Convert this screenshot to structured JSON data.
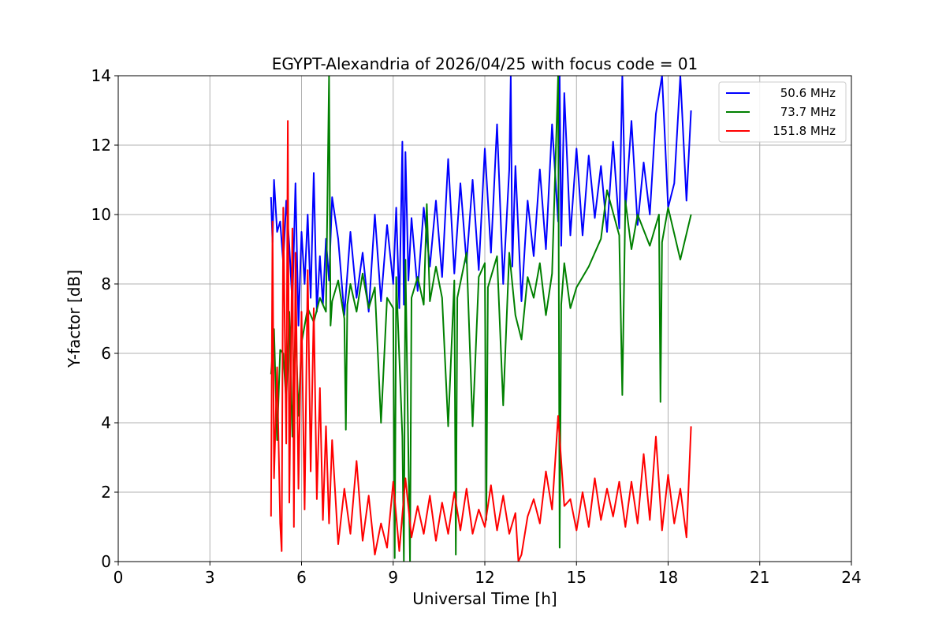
{
  "chart_data": {
    "type": "line",
    "title": "EGYPT-Alexandria of 2026/04/25 with focus code = 01",
    "xlabel": "Universal Time [h]",
    "ylabel": "Y-factor [dB]",
    "xlim": [
      0,
      24
    ],
    "ylim": [
      0,
      14
    ],
    "xticks": [
      0,
      3,
      6,
      9,
      12,
      15,
      18,
      21,
      24
    ],
    "yticks": [
      0,
      2,
      4,
      6,
      8,
      10,
      12,
      14
    ],
    "grid": true,
    "legend_position": "top-right",
    "series": [
      {
        "name": "50.6 MHz",
        "color": "#0000ff",
        "x": [
          5.0,
          5.05,
          5.1,
          5.2,
          5.3,
          5.4,
          5.5,
          5.6,
          5.7,
          5.8,
          5.9,
          6.0,
          6.1,
          6.2,
          6.3,
          6.4,
          6.5,
          6.6,
          6.7,
          6.8,
          6.9,
          7.0,
          7.2,
          7.4,
          7.6,
          7.8,
          8.0,
          8.2,
          8.4,
          8.6,
          8.8,
          9.0,
          9.1,
          9.2,
          9.3,
          9.35,
          9.4,
          9.5,
          9.6,
          9.8,
          10.0,
          10.2,
          10.4,
          10.6,
          10.8,
          11.0,
          11.2,
          11.4,
          11.6,
          11.8,
          12.0,
          12.2,
          12.4,
          12.6,
          12.8,
          12.85,
          12.9,
          13.0,
          13.2,
          13.4,
          13.6,
          13.8,
          14.0,
          14.2,
          14.4,
          14.45,
          14.5,
          14.6,
          14.8,
          15.0,
          15.2,
          15.4,
          15.6,
          15.8,
          16.0,
          16.2,
          16.4,
          16.5,
          16.6,
          16.8,
          17.0,
          17.2,
          17.4,
          17.6,
          17.8,
          18.0,
          18.2,
          18.4,
          18.6,
          18.75
        ],
        "y": [
          10.5,
          9.2,
          11.0,
          9.5,
          9.8,
          8.6,
          10.4,
          9.1,
          7.4,
          10.9,
          6.8,
          9.5,
          8.0,
          10.0,
          7.6,
          11.2,
          7.2,
          8.8,
          7.4,
          9.3,
          8.1,
          10.5,
          9.3,
          7.1,
          9.5,
          7.6,
          8.9,
          7.2,
          10.0,
          7.5,
          9.7,
          8.0,
          10.2,
          7.3,
          12.1,
          7.4,
          11.8,
          8.1,
          9.9,
          7.8,
          10.2,
          8.5,
          10.4,
          8.2,
          11.6,
          8.3,
          10.9,
          8.6,
          11.0,
          8.4,
          11.9,
          8.9,
          12.6,
          8.0,
          11.3,
          14.0,
          8.5,
          11.4,
          7.5,
          10.4,
          8.8,
          11.3,
          9.0,
          12.6,
          9.8,
          14.0,
          9.1,
          13.5,
          9.4,
          11.9,
          9.4,
          11.7,
          9.9,
          11.4,
          9.5,
          12.1,
          9.6,
          14.0,
          10.1,
          12.7,
          9.7,
          11.5,
          10.0,
          12.9,
          14.0,
          10.2,
          10.9,
          14.0,
          10.4,
          13.0
        ]
      },
      {
        "name": "73.7 MHz",
        "color": "#008000",
        "x": [
          5.0,
          5.05,
          5.1,
          5.2,
          5.3,
          5.4,
          5.5,
          5.6,
          5.7,
          5.8,
          5.9,
          6.0,
          6.2,
          6.4,
          6.6,
          6.8,
          6.9,
          6.95,
          7.0,
          7.2,
          7.4,
          7.45,
          7.5,
          7.6,
          7.8,
          8.0,
          8.2,
          8.4,
          8.6,
          8.8,
          9.0,
          9.05,
          9.1,
          9.3,
          9.35,
          9.4,
          9.55,
          9.6,
          9.8,
          10.0,
          10.1,
          10.2,
          10.4,
          10.6,
          10.8,
          11.0,
          11.05,
          11.1,
          11.4,
          11.6,
          11.8,
          12.0,
          12.05,
          12.1,
          12.4,
          12.6,
          12.8,
          13.0,
          13.2,
          13.4,
          13.6,
          13.8,
          14.0,
          14.2,
          14.4,
          14.45,
          14.5,
          14.6,
          14.8,
          15.0,
          15.4,
          15.8,
          16.0,
          16.4,
          16.5,
          16.6,
          16.8,
          17.0,
          17.4,
          17.7,
          17.75,
          17.8,
          18.0,
          18.4,
          18.75
        ],
        "y": [
          5.4,
          6.0,
          6.7,
          3.5,
          6.1,
          6.0,
          4.6,
          7.2,
          3.6,
          6.9,
          4.2,
          6.3,
          7.3,
          6.9,
          7.6,
          7.2,
          14.0,
          6.8,
          7.5,
          8.1,
          7.0,
          3.8,
          7.4,
          8.0,
          7.2,
          8.3,
          7.3,
          7.9,
          4.0,
          7.6,
          7.3,
          0.1,
          8.2,
          3.6,
          0.0,
          8.7,
          0.0,
          7.6,
          8.2,
          7.4,
          10.3,
          7.5,
          8.5,
          7.6,
          3.9,
          8.1,
          0.2,
          7.6,
          8.9,
          3.9,
          8.2,
          8.6,
          1.2,
          7.9,
          8.8,
          4.5,
          8.9,
          7.1,
          6.4,
          8.2,
          7.6,
          8.6,
          7.1,
          8.3,
          14.0,
          0.4,
          7.4,
          8.6,
          7.3,
          7.9,
          8.5,
          9.3,
          10.7,
          9.4,
          4.8,
          10.4,
          9.0,
          10.0,
          9.1,
          10.0,
          4.6,
          9.2,
          10.2,
          8.7,
          10.0
        ]
      },
      {
        "name": "151.8 MHz",
        "color": "#ff0000",
        "x": [
          5.0,
          5.05,
          5.1,
          5.2,
          5.3,
          5.35,
          5.4,
          5.5,
          5.55,
          5.6,
          5.7,
          5.75,
          5.8,
          5.9,
          6.0,
          6.1,
          6.2,
          6.3,
          6.4,
          6.5,
          6.6,
          6.7,
          6.8,
          6.9,
          7.0,
          7.2,
          7.4,
          7.6,
          7.8,
          8.0,
          8.2,
          8.4,
          8.6,
          8.8,
          9.0,
          9.2,
          9.4,
          9.6,
          9.8,
          10.0,
          10.2,
          10.4,
          10.6,
          10.8,
          11.0,
          11.2,
          11.4,
          11.6,
          11.8,
          12.0,
          12.2,
          12.4,
          12.6,
          12.8,
          13.0,
          13.1,
          13.2,
          13.4,
          13.6,
          13.8,
          14.0,
          14.2,
          14.4,
          14.6,
          14.8,
          15.0,
          15.2,
          15.4,
          15.6,
          15.8,
          16.0,
          16.2,
          16.4,
          16.6,
          16.8,
          17.0,
          17.2,
          17.4,
          17.6,
          17.8,
          18.0,
          18.2,
          18.4,
          18.6,
          18.75
        ],
        "y": [
          1.3,
          9.8,
          2.4,
          5.6,
          1.1,
          0.3,
          10.2,
          3.4,
          12.7,
          1.7,
          9.6,
          1.0,
          8.9,
          2.1,
          7.2,
          1.5,
          8.4,
          2.6,
          7.3,
          1.8,
          5.0,
          1.2,
          3.9,
          1.1,
          3.5,
          0.5,
          2.1,
          0.8,
          2.9,
          0.6,
          1.9,
          0.2,
          1.1,
          0.4,
          2.3,
          0.3,
          2.4,
          0.7,
          1.6,
          0.8,
          1.9,
          0.6,
          1.7,
          0.8,
          2.0,
          0.9,
          2.1,
          0.8,
          1.5,
          1.0,
          2.2,
          0.9,
          1.9,
          0.8,
          1.4,
          0.0,
          0.2,
          1.3,
          1.8,
          1.1,
          2.6,
          1.5,
          4.2,
          1.6,
          1.8,
          0.9,
          2.0,
          1.0,
          2.4,
          1.2,
          2.1,
          1.3,
          2.3,
          1.0,
          2.3,
          1.1,
          3.1,
          1.2,
          3.6,
          0.9,
          2.5,
          1.1,
          2.1,
          0.7,
          3.9
        ]
      }
    ]
  }
}
